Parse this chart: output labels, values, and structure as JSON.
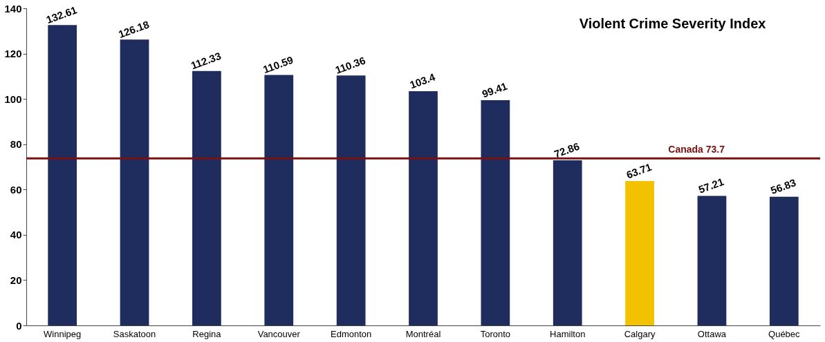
{
  "chart_data": {
    "type": "bar",
    "title": "Violent Crime Severity Index",
    "categories": [
      "Winnipeg",
      "Saskatoon",
      "Regina",
      "Vancouver",
      "Edmonton",
      "Montréal",
      "Toronto",
      "Hamilton",
      "Calgary",
      "Ottawa",
      "Québec"
    ],
    "values": [
      132.61,
      126.18,
      112.33,
      110.59,
      110.36,
      103.4,
      99.41,
      72.86,
      63.71,
      57.21,
      56.83
    ],
    "colors": [
      "#1f2d5e",
      "#1f2d5e",
      "#1f2d5e",
      "#1f2d5e",
      "#1f2d5e",
      "#1f2d5e",
      "#1f2d5e",
      "#1f2d5e",
      "#f2c100",
      "#1f2d5e",
      "#1f2d5e"
    ],
    "ylim": [
      0,
      140
    ],
    "yticks": [
      0,
      20,
      40,
      60,
      80,
      100,
      120,
      140
    ],
    "data_labels": true,
    "grid": false,
    "ref_lines": [
      {
        "axis": "y",
        "value": 73.7,
        "label": "Canada 73.7",
        "color": "#7a1010"
      }
    ]
  }
}
